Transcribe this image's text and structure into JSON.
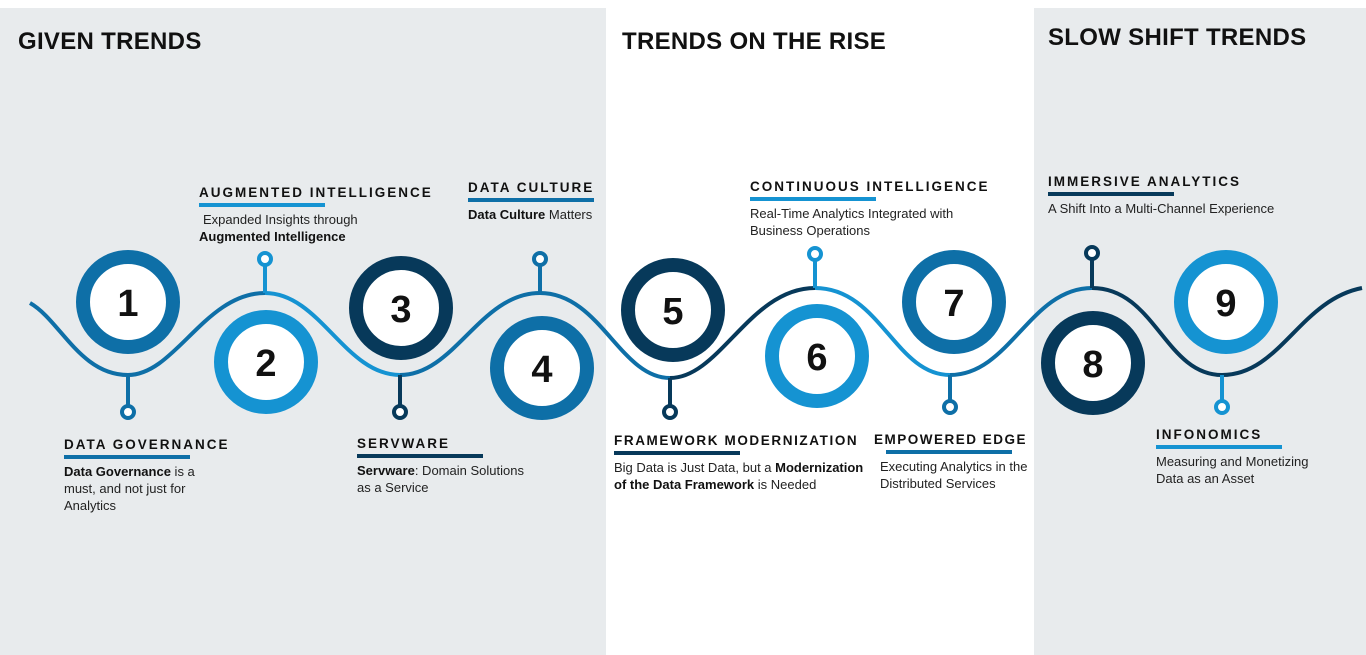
{
  "colors": {
    "dark": "#07395a",
    "mid": "#0e6fa7",
    "light": "#1593d2",
    "panel_gray": "#e8ebed"
  },
  "sections": {
    "given": "GIVEN TRENDS",
    "rise": "TRENDS ON THE RISE",
    "slow": "SLOW SHIFT TRENDS"
  },
  "steps": [
    {
      "number": "1",
      "title": "DATA GOVERNANCE",
      "desc_bold": "Data Governance",
      "desc_rest": " is a must, and not just for Analytics"
    },
    {
      "number": "2",
      "title": "AUGMENTED INTELLIGENCE",
      "desc_pre": "Expanded Insights through",
      "desc_bold": "Augmented Intelligence"
    },
    {
      "number": "3",
      "title": "SERVWARE",
      "desc_bold": "Servware",
      "desc_rest": ": Domain Solutions as a Service"
    },
    {
      "number": "4",
      "title": "DATA CULTURE",
      "desc_bold": "Data Culture",
      "desc_rest": " Matters"
    },
    {
      "number": "5",
      "title": "FRAMEWORK MODERNIZATION",
      "desc_pre": "Big Data is Just Data, but a ",
      "desc_bold": "Modernization of the Data Framework",
      "desc_rest": " is Needed"
    },
    {
      "number": "6",
      "title": "CONTINUOUS INTELLIGENCE",
      "desc_rest": "Real-Time Analytics Integrated with Business Operations"
    },
    {
      "number": "7",
      "title": "EMPOWERED EDGE",
      "desc_rest": "Executing Analytics in the Distributed Services"
    },
    {
      "number": "8",
      "title": "IMMERSIVE ANALYTICS",
      "desc_rest": "A Shift Into a Multi-Channel Experience"
    },
    {
      "number": "9",
      "title": "INFONOMICS",
      "desc_rest": "Measuring and Monetizing Data as an Asset"
    }
  ]
}
